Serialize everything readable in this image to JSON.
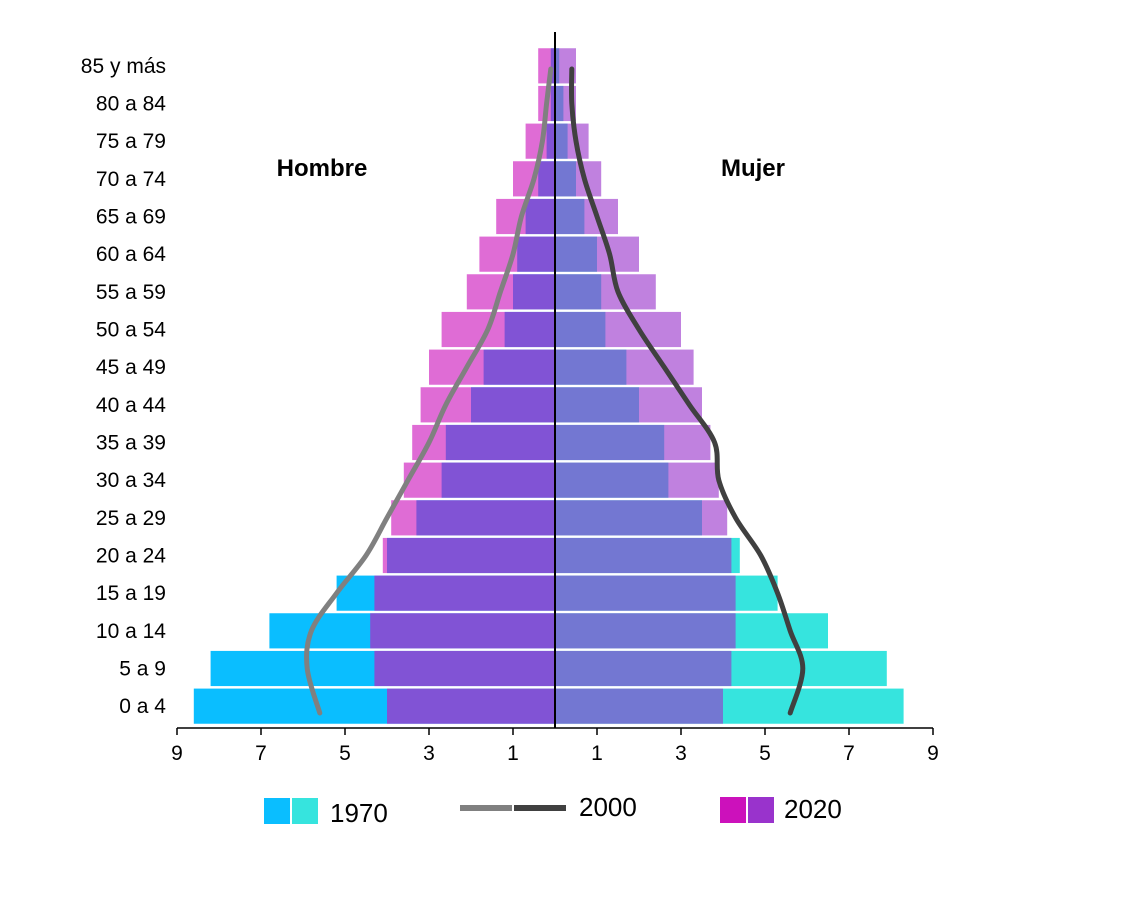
{
  "chart_data": {
    "type": "bar",
    "subtype": "population-pyramid",
    "categories": [
      "0 a 4",
      "5 a 9",
      "10 a 14",
      "15 a 19",
      "20 a 24",
      "25 a 29",
      "30 a 34",
      "35 a 39",
      "40 a 44",
      "45 a 49",
      "50 a 54",
      "55 a 59",
      "60 a 64",
      "65 a 69",
      "70 a 74",
      "75 a 79",
      "80 a 84",
      "85 y más"
    ],
    "side_labels": {
      "left": "Hombre",
      "right": "Mujer"
    },
    "x_ticks": [
      "9",
      "7",
      "5",
      "3",
      "1",
      "1",
      "3",
      "5",
      "7",
      "9"
    ],
    "xlim": [
      -9,
      9
    ],
    "series": [
      {
        "name": "1970",
        "kind": "bar",
        "colors": {
          "male": "#0ABEFF",
          "female": "#36E4DE"
        },
        "male": [
          8.6,
          8.2,
          6.8,
          5.2,
          4.0,
          3.3,
          2.7,
          2.6,
          2.0,
          1.7,
          1.2,
          1.0,
          0.9,
          0.7,
          0.4,
          0.2,
          0.1,
          0.1
        ],
        "female": [
          8.3,
          7.9,
          6.5,
          5.3,
          4.4,
          3.5,
          2.7,
          2.6,
          2.0,
          1.7,
          1.2,
          1.1,
          1.0,
          0.7,
          0.5,
          0.3,
          0.2,
          0.1
        ]
      },
      {
        "name": "2020",
        "kind": "bar",
        "colors": {
          "male": "#CC11BB",
          "female": "#9933CC"
        },
        "male": [
          4.0,
          4.3,
          4.4,
          4.3,
          4.1,
          3.9,
          3.6,
          3.4,
          3.2,
          3.0,
          2.7,
          2.1,
          1.8,
          1.4,
          1.0,
          0.7,
          0.4,
          0.4
        ],
        "female": [
          4.0,
          4.2,
          4.3,
          4.3,
          4.2,
          4.1,
          3.9,
          3.7,
          3.5,
          3.3,
          3.0,
          2.4,
          2.0,
          1.5,
          1.1,
          0.8,
          0.5,
          0.5
        ]
      },
      {
        "name": "2000",
        "kind": "line",
        "colors": {
          "male": "#808080",
          "female": "#404040"
        },
        "male": [
          5.6,
          5.9,
          5.8,
          5.2,
          4.5,
          4.0,
          3.5,
          3.0,
          2.6,
          2.1,
          1.6,
          1.3,
          1.0,
          0.8,
          0.5,
          0.3,
          0.2,
          0.1
        ],
        "female": [
          5.6,
          5.9,
          5.6,
          5.3,
          4.9,
          4.3,
          3.9,
          3.8,
          3.2,
          2.6,
          2.0,
          1.5,
          1.3,
          1.0,
          0.7,
          0.5,
          0.4,
          0.4
        ]
      }
    ],
    "legend": {
      "placement": "bottom",
      "items": [
        {
          "label": "1970",
          "swatch": "bars",
          "colors": [
            "#0ABEFF",
            "#36E4DE"
          ]
        },
        {
          "label": "2000",
          "swatch": "line",
          "colors": [
            "#808080",
            "#404040"
          ]
        },
        {
          "label": "2020",
          "swatch": "bars",
          "colors": [
            "#CC11BB",
            "#9933CC"
          ]
        }
      ]
    }
  }
}
